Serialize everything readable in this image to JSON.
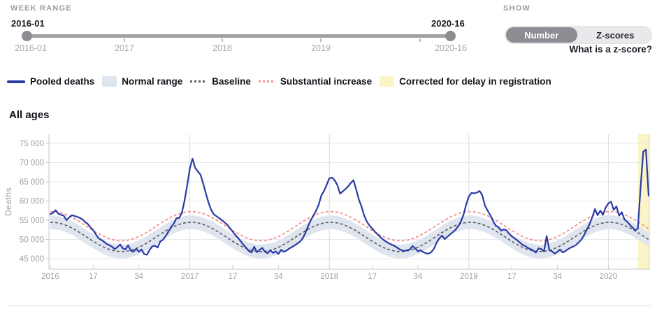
{
  "controls": {
    "week_range": {
      "label": "WEEK RANGE",
      "start_value": "2016-01",
      "end_value": "2020-16",
      "axis_labels": [
        "2016-01",
        "2017",
        "2018",
        "2019",
        "2020-16"
      ]
    },
    "show": {
      "label": "SHOW",
      "options": [
        "Number",
        "Z-scores"
      ],
      "selected": "Number",
      "help_link": "What is a z-score?"
    }
  },
  "legend": {
    "items": [
      {
        "label": "Pooled deaths",
        "type": "line",
        "color": "#2a3aa5"
      },
      {
        "label": "Normal range",
        "type": "band",
        "color": "#dfe5ee"
      },
      {
        "label": "Baseline",
        "type": "dashed",
        "color": "#5c5c60"
      },
      {
        "label": "Substantial increase",
        "type": "dashed",
        "color": "#f2918c"
      },
      {
        "label": "Corrected for delay in registration",
        "type": "band",
        "color": "#fbf4c6"
      }
    ]
  },
  "chart_data": {
    "type": "line",
    "title": "All ages",
    "ylabel": "Deaths",
    "x_unit": "ISO week",
    "x_start": "2016-W01",
    "x_end": "2020-W16",
    "ylim": [
      42300,
      77400
    ],
    "grid": true,
    "colors": {
      "pooled": "#2a3aa5",
      "normal_range": "#dfe5ee",
      "baseline": "#5c5c60",
      "substantial": "#f2918c",
      "corrected": "#fbf4c6"
    },
    "y_ticks": [
      {
        "v": 45000,
        "label": "45 000"
      },
      {
        "v": 50000,
        "label": "50 000"
      },
      {
        "v": 55000,
        "label": "55 000"
      },
      {
        "v": 60000,
        "label": "60 000"
      },
      {
        "v": 65000,
        "label": "65 000"
      },
      {
        "v": 70000,
        "label": "70 000"
      },
      {
        "v": 75000,
        "label": "75 000"
      }
    ],
    "x_ticks": [
      {
        "i": 0,
        "label": "2016"
      },
      {
        "i": 16,
        "label": "17"
      },
      {
        "i": 33,
        "label": "34"
      },
      {
        "i": 52,
        "label": "2017"
      },
      {
        "i": 68,
        "label": "17"
      },
      {
        "i": 85,
        "label": "34"
      },
      {
        "i": 104,
        "label": "2018"
      },
      {
        "i": 120,
        "label": "17"
      },
      {
        "i": 137,
        "label": "34"
      },
      {
        "i": 156,
        "label": "2019"
      },
      {
        "i": 172,
        "label": "17"
      },
      {
        "i": 189,
        "label": "34"
      },
      {
        "i": 208,
        "label": "2020"
      }
    ],
    "year_gridline_indices": [
      52,
      104,
      156,
      208
    ],
    "baseline_model": {
      "mean": 50650,
      "amplitude": 3800,
      "peak_week": 1.5,
      "period": 52,
      "normal_range_halfwidth": 1800,
      "substantial_offset": 2800
    },
    "corrected_region": {
      "start_index": 219,
      "end_index": 223,
      "start": "2020-W12",
      "end": "2020-W16"
    },
    "series": [
      {
        "name": "Pooled deaths",
        "values": [
          56600,
          56900,
          57600,
          56700,
          56400,
          56200,
          55000,
          55700,
          56300,
          56100,
          55900,
          55600,
          55200,
          54500,
          54000,
          53100,
          52400,
          51300,
          50300,
          49900,
          49400,
          48800,
          48500,
          48100,
          47500,
          48000,
          48700,
          47700,
          47400,
          48500,
          47100,
          46800,
          47600,
          46800,
          47400,
          46200,
          46000,
          47300,
          48200,
          48400,
          47900,
          49500,
          49900,
          50900,
          52000,
          53200,
          54100,
          55500,
          55600,
          56800,
          60000,
          64000,
          68500,
          71000,
          68600,
          67700,
          66800,
          64500,
          61900,
          59500,
          57600,
          56500,
          56000,
          55500,
          55000,
          54400,
          53800,
          52900,
          52000,
          51100,
          50400,
          49500,
          48600,
          47800,
          47000,
          46600,
          48100,
          46700,
          47300,
          47800,
          46800,
          46400,
          47200,
          46500,
          46900,
          46200,
          47300,
          46800,
          47100,
          47600,
          48000,
          48400,
          48900,
          49400,
          50200,
          51600,
          53300,
          54900,
          56100,
          57400,
          59000,
          61400,
          62600,
          64200,
          65900,
          66100,
          65400,
          64100,
          61900,
          62500,
          63100,
          63800,
          64700,
          65400,
          63000,
          60400,
          58500,
          56200,
          54600,
          53600,
          52800,
          52000,
          51300,
          50600,
          50000,
          49500,
          49100,
          48700,
          48400,
          48000,
          47500,
          47200,
          47000,
          47200,
          47400,
          48300,
          47700,
          46900,
          47200,
          46700,
          46400,
          46300,
          46700,
          47600,
          49200,
          50300,
          51000,
          50100,
          50700,
          51300,
          51900,
          52500,
          53400,
          54600,
          56400,
          59100,
          61200,
          62100,
          62000,
          62200,
          62600,
          61500,
          58800,
          57500,
          56300,
          54800,
          53600,
          53200,
          52300,
          52600,
          52400,
          51500,
          50800,
          50300,
          49800,
          49200,
          48600,
          48300,
          47800,
          47500,
          47100,
          46600,
          47700,
          47500,
          46900,
          50900,
          47200,
          46900,
          46300,
          46800,
          47400,
          46600,
          47000,
          47500,
          47900,
          48200,
          48600,
          49300,
          50000,
          51200,
          52600,
          54000,
          55800,
          57900,
          56300,
          57500,
          56400,
          58300,
          59400,
          59800,
          57700,
          58600,
          56200,
          57100,
          55200,
          54600,
          53800,
          53100,
          52400,
          52800,
          63500,
          72800,
          73400,
          61400
        ]
      }
    ]
  }
}
